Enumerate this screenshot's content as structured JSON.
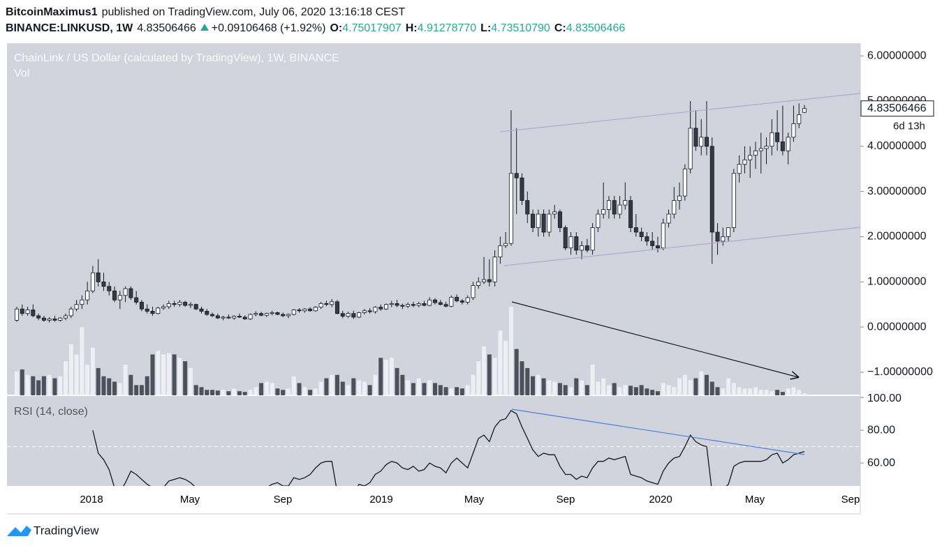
{
  "header": {
    "author": "BitcoinMaximus1",
    "published": "published on TradingView.com, July 06, 2020 13:16:18 CEST",
    "symbol": "BINANCE:LINKUSD, 1W",
    "price": "4.83506466",
    "change": "+0.09106468 (+1.92%)",
    "ohlc": [
      {
        "label": "O:",
        "value": "4.75017907"
      },
      {
        "label": "H:",
        "value": "4.91278770"
      },
      {
        "label": "L:",
        "value": "4.73510790"
      },
      {
        "label": "C:",
        "value": "4.83506466"
      }
    ]
  },
  "chart_data": [
    {
      "type": "candlestick",
      "title": "ChainLink / US Dollar (calculated by TradingView), 1W, BINANCE",
      "subtitle": "Vol",
      "up_color": "#ffffff",
      "down_color": "#363a45",
      "grid": false,
      "ylim": [
        -1.51,
        6.28
      ],
      "yticks": [
        {
          "value": -1,
          "label": "−1.00000000"
        },
        {
          "value": 0,
          "label": "0.00000000"
        },
        {
          "value": 1,
          "label": "1.00000000"
        },
        {
          "value": 2,
          "label": "2.00000000"
        },
        {
          "value": 3,
          "label": "3.00000000"
        },
        {
          "value": 4,
          "label": "4.00000000"
        },
        {
          "value": 5,
          "label": "5.00000000"
        },
        {
          "value": 6,
          "label": "6.00000000"
        }
      ],
      "last_price_label": "4.83506466",
      "countdown": "6d 13h",
      "ohlc": [
        [
          0.15,
          0.45,
          0.12,
          0.4
        ],
        [
          0.4,
          0.5,
          0.25,
          0.3
        ],
        [
          0.3,
          0.45,
          0.25,
          0.38
        ],
        [
          0.38,
          0.5,
          0.22,
          0.25
        ],
        [
          0.25,
          0.3,
          0.15,
          0.2
        ],
        [
          0.2,
          0.25,
          0.12,
          0.15
        ],
        [
          0.15,
          0.22,
          0.1,
          0.18
        ],
        [
          0.18,
          0.25,
          0.12,
          0.15
        ],
        [
          0.15,
          0.22,
          0.12,
          0.2
        ],
        [
          0.2,
          0.3,
          0.15,
          0.25
        ],
        [
          0.25,
          0.45,
          0.2,
          0.4
        ],
        [
          0.4,
          0.6,
          0.35,
          0.5
        ],
        [
          0.5,
          0.7,
          0.4,
          0.6
        ],
        [
          0.6,
          1.0,
          0.5,
          0.8
        ],
        [
          0.8,
          1.35,
          0.75,
          1.2
        ],
        [
          1.2,
          1.5,
          0.9,
          1.0
        ],
        [
          1.0,
          1.2,
          0.8,
          0.9
        ],
        [
          0.9,
          1.0,
          0.7,
          0.8
        ],
        [
          0.8,
          0.9,
          0.55,
          0.6
        ],
        [
          0.6,
          0.8,
          0.4,
          0.7
        ],
        [
          0.7,
          0.9,
          0.55,
          0.85
        ],
        [
          0.85,
          0.9,
          0.6,
          0.65
        ],
        [
          0.65,
          0.8,
          0.5,
          0.55
        ],
        [
          0.55,
          0.6,
          0.35,
          0.4
        ],
        [
          0.4,
          0.5,
          0.3,
          0.35
        ],
        [
          0.35,
          0.45,
          0.25,
          0.3
        ],
        [
          0.3,
          0.45,
          0.28,
          0.42
        ],
        [
          0.42,
          0.5,
          0.38,
          0.45
        ],
        [
          0.45,
          0.58,
          0.4,
          0.52
        ],
        [
          0.52,
          0.58,
          0.45,
          0.5
        ],
        [
          0.5,
          0.6,
          0.45,
          0.55
        ],
        [
          0.55,
          0.58,
          0.45,
          0.48
        ],
        [
          0.48,
          0.55,
          0.42,
          0.5
        ],
        [
          0.5,
          0.52,
          0.38,
          0.4
        ],
        [
          0.4,
          0.45,
          0.3,
          0.35
        ],
        [
          0.35,
          0.4,
          0.25,
          0.28
        ],
        [
          0.28,
          0.32,
          0.22,
          0.25
        ],
        [
          0.25,
          0.3,
          0.18,
          0.2
        ],
        [
          0.2,
          0.25,
          0.15,
          0.22
        ],
        [
          0.22,
          0.28,
          0.18,
          0.2
        ],
        [
          0.2,
          0.26,
          0.16,
          0.24
        ],
        [
          0.24,
          0.3,
          0.2,
          0.22
        ],
        [
          0.22,
          0.26,
          0.16,
          0.18
        ],
        [
          0.18,
          0.3,
          0.16,
          0.28
        ],
        [
          0.28,
          0.35,
          0.24,
          0.3
        ],
        [
          0.3,
          0.34,
          0.24,
          0.26
        ],
        [
          0.26,
          0.32,
          0.22,
          0.3
        ],
        [
          0.3,
          0.36,
          0.26,
          0.32
        ],
        [
          0.32,
          0.34,
          0.26,
          0.28
        ],
        [
          0.28,
          0.32,
          0.22,
          0.25
        ],
        [
          0.25,
          0.3,
          0.2,
          0.28
        ],
        [
          0.28,
          0.4,
          0.26,
          0.38
        ],
        [
          0.38,
          0.42,
          0.32,
          0.36
        ],
        [
          0.36,
          0.42,
          0.32,
          0.4
        ],
        [
          0.4,
          0.44,
          0.34,
          0.36
        ],
        [
          0.36,
          0.46,
          0.34,
          0.44
        ],
        [
          0.44,
          0.56,
          0.4,
          0.52
        ],
        [
          0.52,
          0.58,
          0.46,
          0.5
        ],
        [
          0.5,
          0.62,
          0.44,
          0.56
        ],
        [
          0.56,
          0.6,
          0.28,
          0.3
        ],
        [
          0.3,
          0.36,
          0.2,
          0.24
        ],
        [
          0.24,
          0.34,
          0.2,
          0.3
        ],
        [
          0.3,
          0.36,
          0.18,
          0.22
        ],
        [
          0.22,
          0.34,
          0.2,
          0.32
        ],
        [
          0.32,
          0.4,
          0.28,
          0.36
        ],
        [
          0.36,
          0.42,
          0.3,
          0.34
        ],
        [
          0.34,
          0.46,
          0.3,
          0.44
        ],
        [
          0.44,
          0.5,
          0.36,
          0.4
        ],
        [
          0.4,
          0.52,
          0.38,
          0.5
        ],
        [
          0.5,
          0.58,
          0.44,
          0.52
        ],
        [
          0.52,
          0.6,
          0.44,
          0.48
        ],
        [
          0.48,
          0.52,
          0.4,
          0.46
        ],
        [
          0.46,
          0.54,
          0.42,
          0.5
        ],
        [
          0.5,
          0.56,
          0.44,
          0.48
        ],
        [
          0.48,
          0.56,
          0.44,
          0.52
        ],
        [
          0.52,
          0.58,
          0.46,
          0.48
        ],
        [
          0.48,
          0.66,
          0.46,
          0.6
        ],
        [
          0.6,
          0.64,
          0.5,
          0.54
        ],
        [
          0.54,
          0.6,
          0.48,
          0.5
        ],
        [
          0.5,
          0.56,
          0.44,
          0.46
        ],
        [
          0.46,
          0.7,
          0.44,
          0.66
        ],
        [
          0.66,
          0.72,
          0.55,
          0.58
        ],
        [
          0.58,
          0.62,
          0.5,
          0.55
        ],
        [
          0.55,
          0.7,
          0.5,
          0.65
        ],
        [
          0.65,
          1.0,
          0.6,
          0.92
        ],
        [
          0.92,
          1.1,
          0.85,
          1.0
        ],
        [
          1.0,
          1.55,
          0.95,
          1.05
        ],
        [
          1.05,
          1.5,
          0.9,
          1.0
        ],
        [
          1.0,
          1.7,
          0.9,
          1.55
        ],
        [
          1.55,
          2.0,
          1.4,
          1.8
        ],
        [
          1.8,
          2.1,
          1.75,
          1.85
        ],
        [
          1.85,
          4.8,
          1.8,
          3.4
        ],
        [
          3.4,
          4.4,
          2.5,
          3.3
        ],
        [
          3.3,
          3.4,
          2.7,
          2.8
        ],
        [
          2.8,
          3.0,
          2.3,
          2.5
        ],
        [
          2.5,
          2.6,
          2.1,
          2.2
        ],
        [
          2.2,
          2.6,
          2.0,
          2.5
        ],
        [
          2.5,
          2.6,
          2.0,
          2.1
        ],
        [
          2.1,
          2.6,
          2.0,
          2.5
        ],
        [
          2.5,
          2.7,
          2.4,
          2.55
        ],
        [
          2.55,
          2.6,
          2.1,
          2.2
        ],
        [
          2.2,
          2.25,
          1.7,
          1.75
        ],
        [
          1.75,
          2.1,
          1.6,
          2.0
        ],
        [
          2.0,
          2.1,
          1.6,
          1.7
        ],
        [
          1.7,
          1.9,
          1.5,
          1.8
        ],
        [
          1.8,
          1.95,
          1.65,
          1.7
        ],
        [
          1.7,
          2.3,
          1.6,
          2.2
        ],
        [
          2.2,
          2.6,
          2.1,
          2.5
        ],
        [
          2.5,
          3.2,
          2.4,
          2.6
        ],
        [
          2.6,
          2.9,
          2.4,
          2.8
        ],
        [
          2.8,
          2.9,
          2.4,
          2.5
        ],
        [
          2.5,
          2.9,
          2.4,
          2.7
        ],
        [
          2.7,
          3.2,
          2.6,
          2.8
        ],
        [
          2.8,
          2.9,
          2.1,
          2.2
        ],
        [
          2.2,
          2.5,
          2.0,
          2.1
        ],
        [
          2.1,
          2.2,
          1.9,
          2.0
        ],
        [
          2.0,
          2.1,
          1.8,
          1.9
        ],
        [
          1.9,
          2.1,
          1.7,
          1.8
        ],
        [
          1.8,
          2.0,
          1.65,
          1.75
        ],
        [
          1.75,
          2.4,
          1.7,
          2.3
        ],
        [
          2.3,
          2.6,
          2.2,
          2.5
        ],
        [
          2.5,
          3.1,
          2.4,
          2.8
        ],
        [
          2.8,
          3.2,
          2.6,
          2.9
        ],
        [
          2.9,
          3.6,
          2.8,
          3.5
        ],
        [
          3.5,
          5.0,
          3.4,
          4.4
        ],
        [
          4.4,
          4.8,
          3.9,
          4.0
        ],
        [
          4.0,
          4.6,
          3.8,
          4.2
        ],
        [
          4.2,
          5.0,
          3.8,
          4.0
        ],
        [
          4.0,
          4.2,
          1.4,
          2.1
        ],
        [
          2.1,
          2.3,
          1.6,
          1.9
        ],
        [
          1.9,
          2.2,
          1.8,
          2.0
        ],
        [
          2.0,
          2.2,
          1.9,
          2.2
        ],
        [
          2.2,
          3.5,
          2.1,
          3.4
        ],
        [
          3.4,
          3.8,
          3.2,
          3.6
        ],
        [
          3.6,
          4.0,
          3.4,
          3.7
        ],
        [
          3.7,
          4.0,
          3.3,
          3.8
        ],
        [
          3.8,
          4.1,
          3.5,
          3.9
        ],
        [
          3.9,
          4.3,
          3.4,
          3.95
        ],
        [
          3.95,
          4.2,
          3.6,
          4.0
        ],
        [
          4.0,
          4.6,
          3.8,
          4.3
        ],
        [
          4.3,
          4.8,
          3.9,
          4.1
        ],
        [
          4.1,
          4.9,
          3.8,
          3.9
        ],
        [
          3.9,
          4.3,
          3.6,
          4.2
        ],
        [
          4.2,
          4.9,
          4.1,
          4.5
        ],
        [
          4.5,
          4.95,
          4.4,
          4.7
        ],
        [
          4.75017907,
          4.9127877,
          4.7351079,
          4.83506466
        ]
      ],
      "volume": [
        35,
        38,
        30,
        28,
        22,
        28,
        30,
        25,
        28,
        50,
        75,
        60,
        100,
        45,
        70,
        40,
        28,
        25,
        20,
        18,
        45,
        30,
        15,
        15,
        28,
        60,
        65,
        60,
        62,
        60,
        55,
        50,
        40,
        15,
        12,
        8,
        8,
        7,
        8,
        6,
        10,
        6,
        5,
        8,
        12,
        18,
        20,
        18,
        10,
        8,
        10,
        28,
        18,
        12,
        8,
        10,
        20,
        25,
        30,
        30,
        20,
        15,
        25,
        22,
        20,
        15,
        30,
        55,
        52,
        55,
        40,
        30,
        22,
        18,
        25,
        18,
        22,
        18,
        15,
        12,
        10,
        12,
        10,
        15,
        30,
        50,
        72,
        60,
        55,
        95,
        80,
        130,
        68,
        50,
        40,
        28,
        30,
        25,
        22,
        20,
        18,
        15,
        12,
        25,
        22,
        15,
        45,
        20,
        25,
        15,
        18,
        12,
        15,
        14,
        12,
        15,
        10,
        8,
        6,
        18,
        15,
        12,
        25,
        30,
        22,
        25,
        35,
        30,
        20,
        12,
        10,
        25,
        18,
        12,
        10,
        10,
        12,
        8,
        8,
        6,
        8,
        5,
        10,
        12,
        8,
        3
      ]
    },
    {
      "type": "line",
      "title": "RSI (14, close)",
      "color": "#131722",
      "level": 70,
      "ylim": [
        46,
        101.3
      ],
      "yticks": [
        {
          "value": 60,
          "label": "60.00"
        },
        {
          "value": 80,
          "label": "80.00"
        },
        {
          "value": 100,
          "label": "100.00"
        }
      ],
      "values": [
        null,
        null,
        null,
        null,
        null,
        null,
        null,
        null,
        null,
        null,
        null,
        null,
        null,
        null,
        80,
        66,
        62,
        56,
        45,
        42,
        48,
        55,
        53,
        50,
        47,
        45,
        44,
        45,
        49,
        50,
        51,
        50,
        48,
        45,
        42,
        40,
        41,
        43,
        42,
        40,
        41,
        42,
        41,
        40,
        42,
        44,
        45,
        47,
        48,
        46,
        46,
        51,
        50,
        51,
        53,
        57,
        60,
        61,
        61,
        42,
        40,
        44,
        42,
        47,
        46,
        48,
        53,
        55,
        59,
        61,
        60,
        57,
        56,
        58,
        55,
        56,
        60,
        58,
        57,
        54,
        60,
        63,
        60,
        57,
        66,
        75,
        77,
        73,
        82,
        86,
        87,
        92,
        90,
        82,
        75,
        68,
        64,
        66,
        65,
        65,
        58,
        53,
        53,
        50,
        52,
        51,
        57,
        61,
        61,
        63,
        62,
        63,
        64,
        53,
        52,
        51,
        49,
        48,
        47,
        55,
        60,
        63,
        64,
        70,
        77,
        73,
        71,
        70,
        42,
        40,
        44,
        47,
        58,
        60,
        61,
        61,
        61,
        61,
        62,
        65,
        66,
        60,
        62,
        65,
        66,
        67
      ]
    }
  ],
  "time_axis": [
    "2018",
    "May",
    "Sep",
    "2019",
    "May",
    "Sep",
    "2020",
    "May",
    "Sep"
  ],
  "footer": {
    "brand": "TradingView"
  }
}
